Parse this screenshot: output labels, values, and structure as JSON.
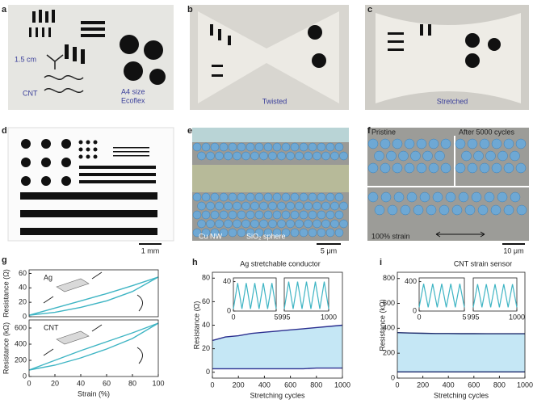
{
  "panels": [
    {
      "letter": "a",
      "texts": [
        "1.5 cm",
        "CNT",
        "A4 size",
        "Ecoflex"
      ]
    },
    {
      "letter": "b",
      "texts": [
        "Twisted"
      ]
    },
    {
      "letter": "c",
      "texts": [
        "Stretched"
      ]
    },
    {
      "letter": "d",
      "texts": [
        "1 mm"
      ]
    },
    {
      "letter": "e",
      "texts": [
        "Cu NW",
        "SiO₂ sphere",
        "5 μm"
      ]
    },
    {
      "letter": "f",
      "texts": [
        "Pristine",
        "After 5000 cycles",
        "100% strain",
        "10 μm"
      ]
    },
    {
      "letter": "g",
      "texts": []
    },
    {
      "letter": "h",
      "texts": []
    },
    {
      "letter": "i",
      "texts": []
    }
  ],
  "chart_data": [
    {
      "type": "line",
      "annotation": "Ag",
      "y_label": "Resistance (Ω)",
      "x": [
        0,
        20,
        40,
        60,
        80,
        100
      ],
      "series": [
        {
          "color": "#3fb5c4",
          "values": [
            2,
            12,
            22,
            32,
            43,
            55
          ]
        },
        {
          "color": "#3fb5c4",
          "values": [
            2,
            6,
            13,
            22,
            35,
            55
          ]
        }
      ],
      "xlim": [
        0,
        100
      ],
      "ylim": [
        0,
        65
      ],
      "yticks": [
        0,
        20,
        40,
        60
      ]
    },
    {
      "type": "line",
      "annotation": "CNT",
      "x_label": "Strain (%)",
      "y_label": "Resistance (kΩ)",
      "x": [
        0,
        20,
        40,
        60,
        80,
        100
      ],
      "series": [
        {
          "color": "#3fb5c4",
          "values": [
            80,
            200,
            320,
            430,
            540,
            660
          ]
        },
        {
          "color": "#3fb5c4",
          "values": [
            80,
            140,
            230,
            340,
            470,
            660
          ]
        }
      ],
      "xlim": [
        0,
        100
      ],
      "ylim": [
        0,
        700
      ],
      "xticks": [
        0,
        20,
        40,
        60,
        80,
        100
      ],
      "yticks": [
        0,
        200,
        400,
        600
      ]
    },
    {
      "type": "area",
      "title": "Ag stretchable conductor",
      "x_label": "Stretching cycles",
      "y_label": "Resistance (Ω)",
      "x": [
        0,
        100,
        200,
        300,
        400,
        500,
        600,
        700,
        800,
        900,
        1000
      ],
      "series": [
        {
          "color": "#2b2f8f",
          "values": [
            27,
            30,
            31,
            33,
            34,
            35,
            36,
            37,
            38,
            39,
            40
          ]
        },
        {
          "color": "#2b2f8f",
          "values": [
            3,
            3,
            3,
            3,
            3,
            3,
            3,
            3,
            3.5,
            3.5,
            3.5
          ]
        }
      ],
      "fill": "#c5e7f5",
      "xlim": [
        0,
        1000
      ],
      "ylim": [
        -5,
        85
      ],
      "xticks": [
        0,
        200,
        400,
        600,
        800,
        1000
      ],
      "yticks": [
        0,
        20,
        40,
        60,
        80
      ],
      "insets": [
        {
          "color": "#3fb5c4",
          "xlim": [
            0,
            5
          ],
          "ylim": [
            0,
            45
          ],
          "xticks": [
            0,
            5
          ],
          "yticks": [
            0,
            40
          ],
          "x": [
            0,
            0.5,
            1,
            1.5,
            2,
            2.5,
            3,
            3.5,
            4,
            4.5,
            5
          ],
          "values": [
            3,
            38,
            3,
            38,
            3,
            38,
            3,
            38,
            3,
            38,
            3
          ]
        },
        {
          "color": "#3fb5c4",
          "xlim": [
            995,
            1000
          ],
          "ylim": [
            0,
            45
          ],
          "xticks": [
            995,
            1000
          ],
          "x": [
            995,
            995.5,
            996,
            996.5,
            997,
            997.5,
            998,
            998.5,
            999,
            999.5,
            1000
          ],
          "values": [
            3,
            40,
            3,
            40,
            3,
            40,
            3,
            40,
            3,
            40,
            3
          ]
        }
      ]
    },
    {
      "type": "area",
      "title": "CNT strain sensor",
      "x_label": "Stretching cycles",
      "y_label": "Resistance (kΩ)",
      "x": [
        0,
        100,
        200,
        300,
        400,
        500,
        600,
        700,
        800,
        900,
        1000
      ],
      "series": [
        {
          "color": "#1c2a6b",
          "values": [
            365,
            362,
            360,
            358,
            358,
            357,
            357,
            356,
            356,
            356,
            356
          ]
        },
        {
          "color": "#1c2a6b",
          "values": [
            50,
            50,
            50,
            50,
            50,
            50,
            50,
            50,
            50,
            50,
            50
          ]
        }
      ],
      "fill": "#c5e7f5",
      "xlim": [
        0,
        1000
      ],
      "ylim": [
        0,
        850
      ],
      "xticks": [
        0,
        200,
        400,
        600,
        800,
        1000
      ],
      "yticks": [
        0,
        200,
        400,
        600,
        800
      ],
      "insets": [
        {
          "color": "#3fb5c4",
          "xlim": [
            0,
            5
          ],
          "ylim": [
            0,
            450
          ],
          "xticks": [
            0,
            5
          ],
          "yticks": [
            0,
            400
          ],
          "x": [
            0,
            0.5,
            1,
            1.5,
            2,
            2.5,
            3,
            3.5,
            4,
            4.5,
            5
          ],
          "values": [
            50,
            370,
            50,
            370,
            50,
            370,
            50,
            370,
            50,
            370,
            50
          ]
        },
        {
          "color": "#3fb5c4",
          "xlim": [
            995,
            1000
          ],
          "ylim": [
            0,
            450
          ],
          "xticks": [
            995,
            1000
          ],
          "x": [
            995,
            995.5,
            996,
            996.5,
            997,
            997.5,
            998,
            998.5,
            999,
            999.5,
            1000
          ],
          "values": [
            50,
            365,
            50,
            365,
            50,
            365,
            50,
            365,
            50,
            365,
            50
          ]
        }
      ]
    }
  ]
}
